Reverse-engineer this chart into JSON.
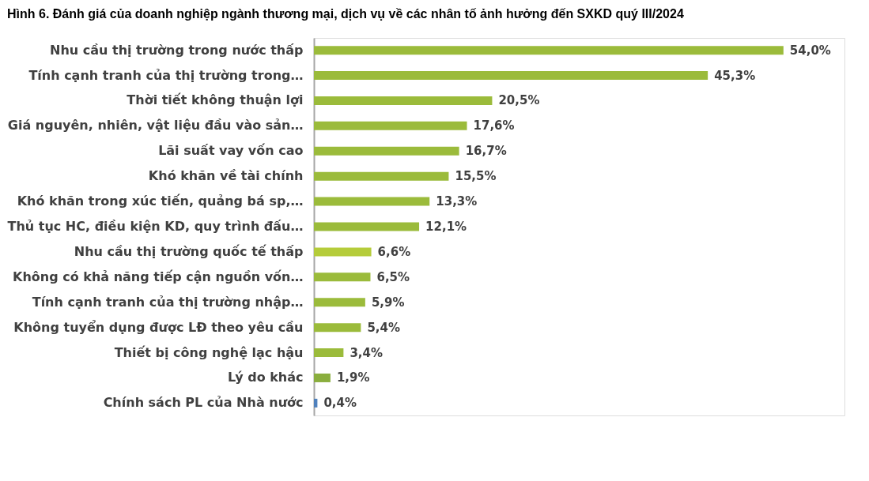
{
  "chart_data": {
    "type": "bar",
    "orientation": "horizontal",
    "title": "Hình 6. Đánh giá của doanh nghiệp ngành thương mại, dịch vụ về các nhân tố ảnh hưởng đến SXKD quý III/2024",
    "categories": [
      "Nhu cầu thị trường trong nước thấp",
      "Tính cạnh tranh của thị trường trong…",
      "Thời tiết không thuận lợi",
      "Giá nguyên, nhiên, vật liệu đầu vào sản…",
      "Lãi suất vay vốn cao",
      "Khó khăn về tài chính",
      "Khó khăn trong xúc tiến, quảng bá sp,…",
      "Thủ tục HC, điều kiện KD, quy trình đấu…",
      "Nhu cầu thị trường quốc tế thấp",
      "Không có khả năng tiếp cận nguồn vốn…",
      "Tính cạnh tranh của thị trường nhập…",
      "Không tuyển dụng được LĐ theo yêu cầu",
      "Thiết bị công nghệ lạc hậu",
      "Lý do khác",
      "Chính sách PL của Nhà nước"
    ],
    "values": [
      54.0,
      45.3,
      20.5,
      17.6,
      16.7,
      15.5,
      13.3,
      12.1,
      6.6,
      6.5,
      5.9,
      5.4,
      3.4,
      1.9,
      0.4
    ],
    "value_labels": [
      "54,0%",
      "45,3%",
      "20,5%",
      "17,6%",
      "16,7%",
      "15,5%",
      "13,3%",
      "12,1%",
      "6,6%",
      "6,5%",
      "5,9%",
      "5,4%",
      "3,4%",
      "1,9%",
      "0,4%"
    ],
    "colors": [
      "#9bbb3b",
      "#9bbb3b",
      "#9bbb3b",
      "#9bbb3b",
      "#9bbb3b",
      "#9bbb3b",
      "#9bbb3b",
      "#9bbb3b",
      "#b5cc3a",
      "#9bbb3b",
      "#9bbb3b",
      "#9bbb3b",
      "#9bbb3b",
      "#8aae3e",
      "#4f81bd"
    ],
    "tick_labels": "y",
    "grid": false
  }
}
